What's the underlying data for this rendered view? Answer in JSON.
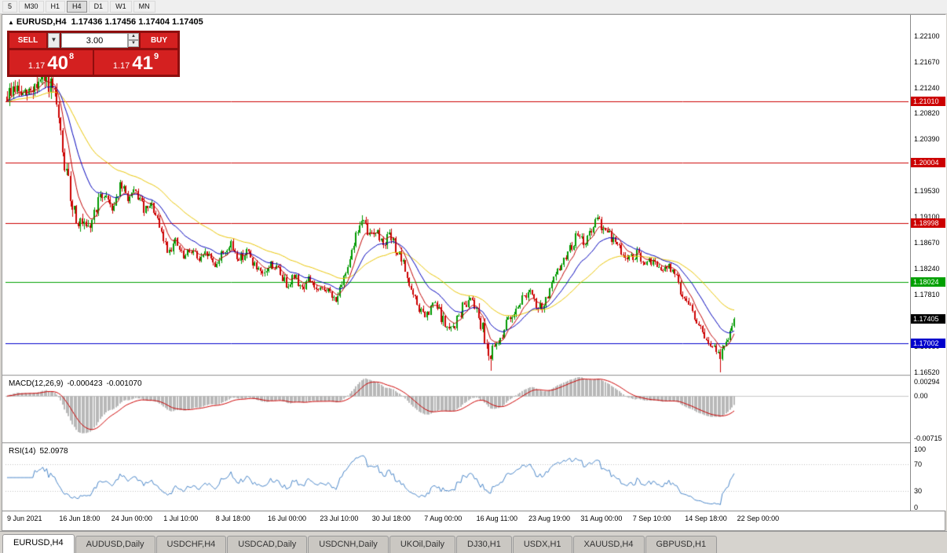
{
  "toolbar": {
    "periods": [
      {
        "label": "5",
        "active": false
      },
      {
        "label": "M30",
        "active": false
      },
      {
        "label": "H1",
        "active": false
      },
      {
        "label": "H4",
        "active": true
      },
      {
        "label": "D1",
        "active": false
      },
      {
        "label": "W1",
        "active": false
      },
      {
        "label": "MN",
        "active": false
      }
    ]
  },
  "chart": {
    "collapse_arrow": "▲",
    "symbol_period": "EURUSD,H4",
    "ohlc": "1.17436 1.17456 1.17404 1.17405"
  },
  "one_click": {
    "sell_label": "SELL",
    "buy_label": "BUY",
    "volume": "3.00",
    "bid_prefix": "1.17",
    "bid_big": "40",
    "bid_sup": "8",
    "ask_prefix": "1.17",
    "ask_big": "41",
    "ask_sup": "9"
  },
  "price_axis": {
    "labels": [
      "1.22100",
      "1.21670",
      "1.21240",
      "1.20820",
      "1.20390",
      "1.19960",
      "1.19530",
      "1.19100",
      "1.18670",
      "1.18240",
      "1.17810",
      "1.17380",
      "1.16950",
      "1.16520"
    ]
  },
  "levels": [
    {
      "value": 1.2101,
      "label": "1.21010",
      "color": "#cc0000"
    },
    {
      "value": 1.20004,
      "label": "1.20004",
      "color": "#cc0000"
    },
    {
      "value": 1.18998,
      "label": "1.18998",
      "color": "#cc0000"
    },
    {
      "value": 1.18024,
      "label": "1.18024",
      "color": "#00a000"
    },
    {
      "value": 1.17002,
      "label": "1.17002",
      "color": "#0000cc"
    }
  ],
  "current_price": {
    "value": 1.17405,
    "label": "1.17405",
    "color": "#000000"
  },
  "macd": {
    "label": "MACD(12,26,9)",
    "value1": "-0.000423",
    "value2": "-0.001070",
    "axis_max_label": "0.00294",
    "axis_zero_label": "0.00",
    "axis_min_label": "-0.00715",
    "max": 0.00294,
    "min": -0.00715
  },
  "rsi": {
    "label": "RSI(14)",
    "value": "52.0978",
    "axis_labels": [
      "100",
      "70",
      "30",
      "0"
    ],
    "levels": [
      70,
      30
    ]
  },
  "time_axis": {
    "labels": [
      "9 Jun 2021",
      "16 Jun 18:00",
      "24 Jun 00:00",
      "1 Jul 10:00",
      "8 Jul 18:00",
      "16 Jul 00:00",
      "23 Jul 10:00",
      "30 Jul 18:00",
      "7 Aug 00:00",
      "16 Aug 11:00",
      "23 Aug 19:00",
      "31 Aug 00:00",
      "7 Sep 10:00",
      "14 Sep 18:00",
      "22 Sep 00:00"
    ]
  },
  "tabs": [
    {
      "label": "EURUSD,H4",
      "active": true
    },
    {
      "label": "AUDUSD,Daily",
      "active": false
    },
    {
      "label": "USDCHF,H4",
      "active": false
    },
    {
      "label": "USDCAD,Daily",
      "active": false
    },
    {
      "label": "USDCNH,Daily",
      "active": false
    },
    {
      "label": "UKOil,Daily",
      "active": false
    },
    {
      "label": "DJ30,H1",
      "active": false
    },
    {
      "label": "USDX,H1",
      "active": false
    },
    {
      "label": "XAUUSD,H4",
      "active": false
    },
    {
      "label": "GBPUSD,H1",
      "active": false
    }
  ],
  "chart_data": {
    "type": "candlestick",
    "symbol": "EURUSD",
    "timeframe": "H4",
    "price_top": 1.2245,
    "price_bottom": 1.1648,
    "plot_candle_area": 926,
    "num_candles": 368,
    "seed": 9,
    "body_noise": 0.00085,
    "wick_noise": 0.0006,
    "ma_periods": [
      8,
      21,
      50
    ],
    "colors": {
      "up": "#009900",
      "down": "#cc0000",
      "ma_fast": "#c00000",
      "ma_mid": "#0000bb",
      "ma_slow": "#e8c400",
      "macd_hist": "#b8b8b8",
      "macd_signal": "#cc0000",
      "rsi": "#4a86c8",
      "rsi_level": "#c0c0c0"
    },
    "anchors": [
      [
        0.0,
        1.211
      ],
      [
        0.01,
        1.2125
      ],
      [
        0.024,
        1.2108
      ],
      [
        0.04,
        1.213
      ],
      [
        0.056,
        1.2135
      ],
      [
        0.067,
        1.21
      ],
      [
        0.078,
        1.2
      ],
      [
        0.089,
        1.1935
      ],
      [
        0.1,
        1.1898
      ],
      [
        0.111,
        1.1882
      ],
      [
        0.124,
        1.1932
      ],
      [
        0.134,
        1.195
      ],
      [
        0.145,
        1.1925
      ],
      [
        0.156,
        1.1962
      ],
      [
        0.167,
        1.194
      ],
      [
        0.178,
        1.195
      ],
      [
        0.189,
        1.1918
      ],
      [
        0.2,
        1.1928
      ],
      [
        0.21,
        1.1888
      ],
      [
        0.221,
        1.1855
      ],
      [
        0.232,
        1.1868
      ],
      [
        0.243,
        1.184
      ],
      [
        0.254,
        1.1858
      ],
      [
        0.265,
        1.1835
      ],
      [
        0.275,
        1.185
      ],
      [
        0.286,
        1.183
      ],
      [
        0.297,
        1.1852
      ],
      [
        0.308,
        1.1862
      ],
      [
        0.319,
        1.184
      ],
      [
        0.33,
        1.1853
      ],
      [
        0.341,
        1.1828
      ],
      [
        0.351,
        1.1808
      ],
      [
        0.362,
        1.1832
      ],
      [
        0.373,
        1.1822
      ],
      [
        0.384,
        1.1798
      ],
      [
        0.395,
        1.1812
      ],
      [
        0.406,
        1.1792
      ],
      [
        0.416,
        1.1808
      ],
      [
        0.427,
        1.1783
      ],
      [
        0.438,
        1.1793
      ],
      [
        0.449,
        1.1772
      ],
      [
        0.46,
        1.1788
      ],
      [
        0.471,
        1.1845
      ],
      [
        0.482,
        1.1888
      ],
      [
        0.488,
        1.1902
      ],
      [
        0.499,
        1.1878
      ],
      [
        0.505,
        1.1892
      ],
      [
        0.516,
        1.1868
      ],
      [
        0.527,
        1.1878
      ],
      [
        0.538,
        1.1848
      ],
      [
        0.549,
        1.1818
      ],
      [
        0.555,
        1.1788
      ],
      [
        0.566,
        1.1758
      ],
      [
        0.577,
        1.1742
      ],
      [
        0.588,
        1.1768
      ],
      [
        0.599,
        1.1738
      ],
      [
        0.609,
        1.1718
      ],
      [
        0.62,
        1.1742
      ],
      [
        0.631,
        1.1768
      ],
      [
        0.64,
        1.178
      ],
      [
        0.653,
        1.1728
      ],
      [
        0.664,
        1.1678
      ],
      [
        0.675,
        1.17
      ],
      [
        0.685,
        1.1728
      ],
      [
        0.696,
        1.1752
      ],
      [
        0.707,
        1.1772
      ],
      [
        0.718,
        1.1788
      ],
      [
        0.729,
        1.1755
      ],
      [
        0.74,
        1.1768
      ],
      [
        0.75,
        1.1798
      ],
      [
        0.761,
        1.1828
      ],
      [
        0.772,
        1.1852
      ],
      [
        0.783,
        1.1878
      ],
      [
        0.794,
        1.1868
      ],
      [
        0.805,
        1.1888
      ],
      [
        0.812,
        1.1903
      ],
      [
        0.823,
        1.1888
      ],
      [
        0.834,
        1.1872
      ],
      [
        0.845,
        1.1852
      ],
      [
        0.856,
        1.1838
      ],
      [
        0.866,
        1.1848
      ],
      [
        0.877,
        1.1828
      ],
      [
        0.888,
        1.1838
      ],
      [
        0.899,
        1.1818
      ],
      [
        0.91,
        1.1828
      ],
      [
        0.921,
        1.1808
      ],
      [
        0.926,
        1.1788
      ],
      [
        0.937,
        1.1768
      ],
      [
        0.948,
        1.1738
      ],
      [
        0.959,
        1.1708
      ],
      [
        0.97,
        1.1693
      ],
      [
        0.981,
        1.168
      ],
      [
        0.989,
        1.17
      ],
      [
        0.996,
        1.1728
      ],
      [
        1.0,
        1.1741
      ]
    ],
    "vol_anchors": [
      [
        0.0,
        1.7
      ],
      [
        0.05,
        2.1
      ],
      [
        0.09,
        2.1
      ],
      [
        0.12,
        1.3
      ],
      [
        0.18,
        1.0
      ],
      [
        0.44,
        0.95
      ],
      [
        0.49,
        1.25
      ],
      [
        0.56,
        1.0
      ],
      [
        0.66,
        1.35
      ],
      [
        0.73,
        0.95
      ],
      [
        0.81,
        1.1
      ],
      [
        0.9,
        0.9
      ],
      [
        1.0,
        1.0
      ]
    ],
    "spikes": [
      {
        "t": 0.04,
        "high": 1.215
      },
      {
        "t": 0.488,
        "high": 1.1912
      },
      {
        "t": 0.664,
        "low": 1.1654
      },
      {
        "t": 0.812,
        "high": 1.1909
      },
      {
        "t": 0.981,
        "low": 1.1652
      }
    ]
  }
}
